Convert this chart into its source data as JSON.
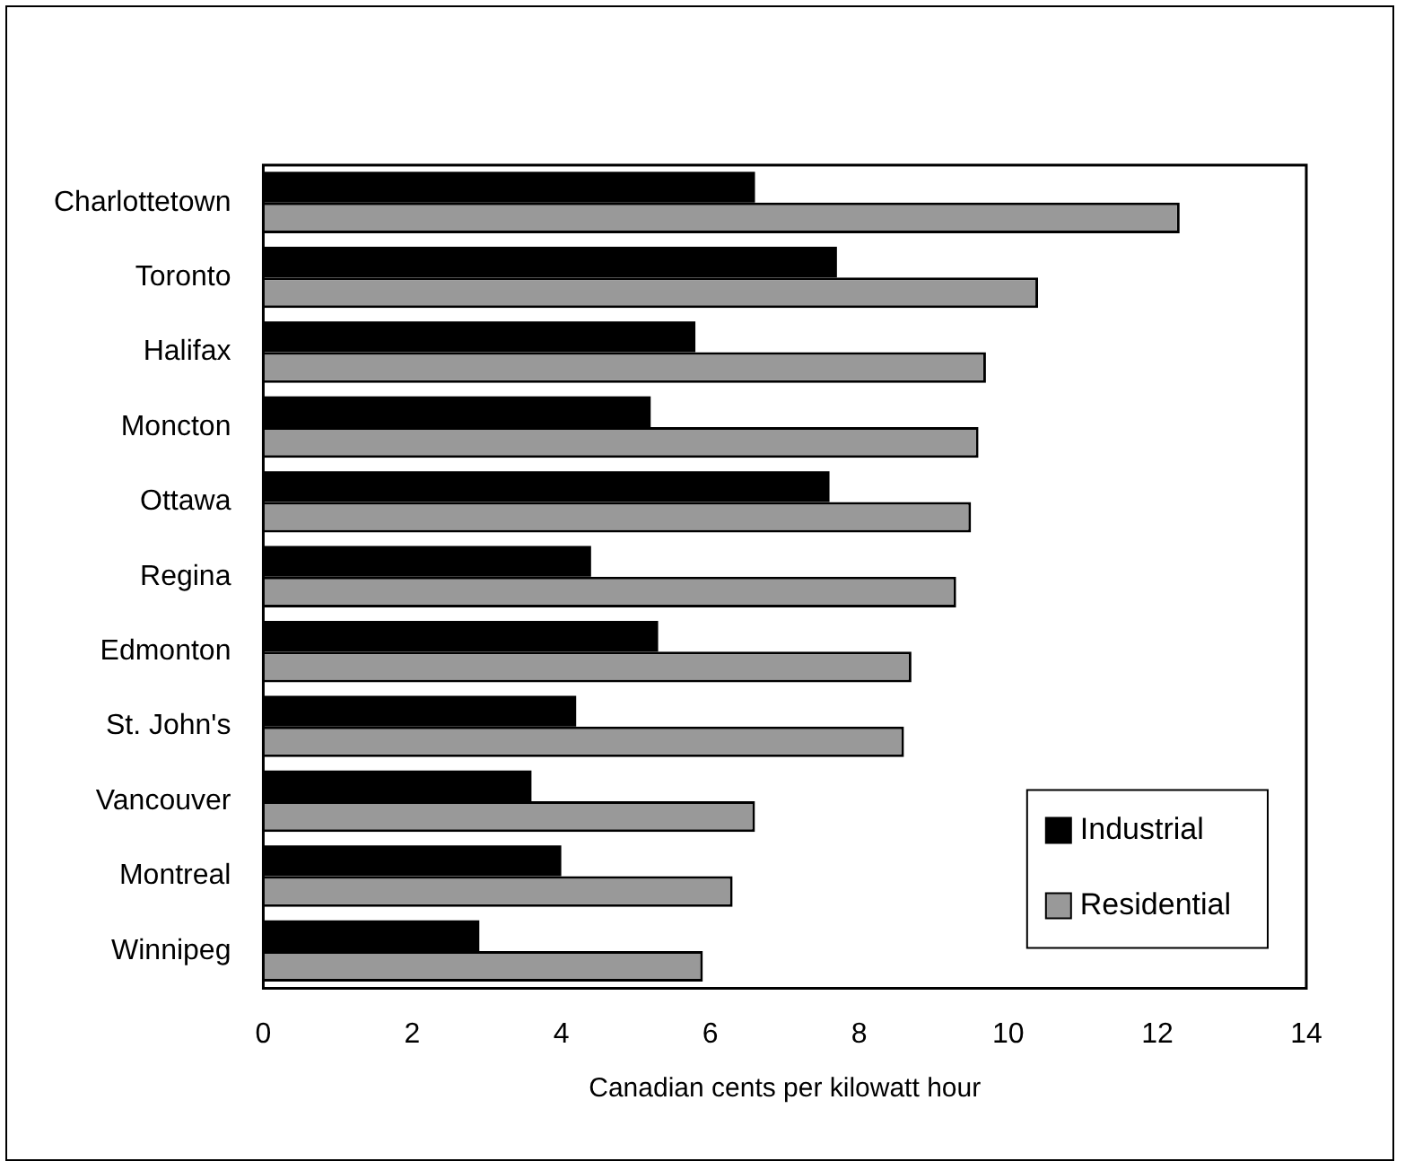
{
  "chart_data": {
    "type": "bar",
    "orientation": "horizontal",
    "xlabel": "Canadian cents per kilowatt hour",
    "categories": [
      "Charlottetown",
      "Toronto",
      "Halifax",
      "Moncton",
      "Ottawa",
      "Regina",
      "Edmonton",
      "St. John's",
      "Vancouver",
      "Montreal",
      "Winnipeg"
    ],
    "series": [
      {
        "name": "Industrial",
        "color": "#000000",
        "values": [
          6.6,
          7.7,
          5.8,
          5.2,
          7.6,
          4.4,
          5.3,
          4.2,
          3.6,
          4.0,
          2.9
        ]
      },
      {
        "name": "Residential",
        "color": "#999999",
        "values": [
          12.3,
          10.4,
          9.7,
          9.6,
          9.5,
          9.3,
          8.7,
          8.6,
          6.6,
          6.3,
          5.9
        ]
      }
    ],
    "xlim": [
      0,
      14
    ],
    "xticks": [
      0,
      2,
      4,
      6,
      8,
      10,
      12,
      14
    ],
    "grid": false,
    "legend": "bottom right"
  }
}
